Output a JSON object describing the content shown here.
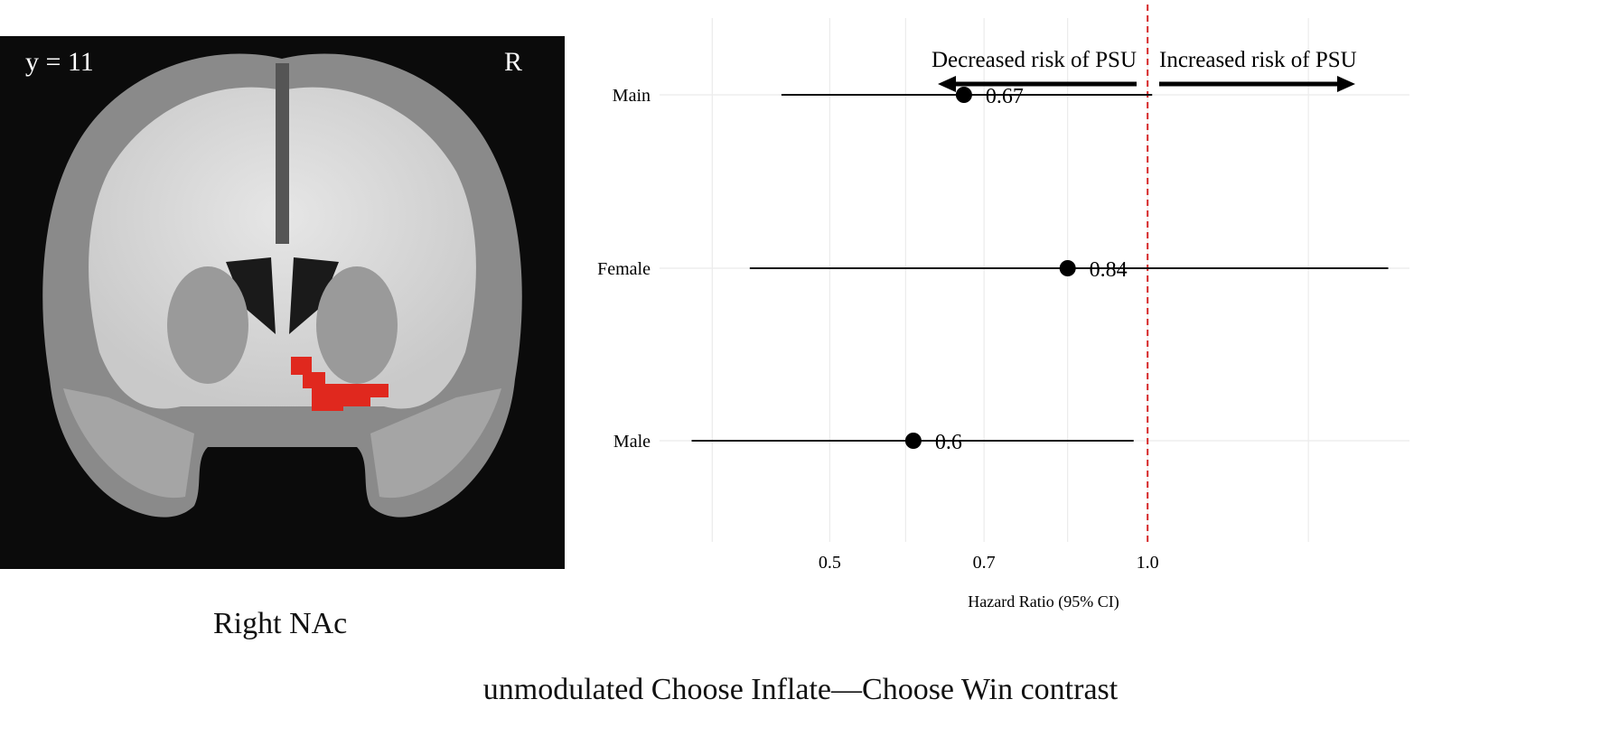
{
  "brain_panel": {
    "slice_label": "y = 11",
    "side_label": "R",
    "region_label": "Right NAc",
    "highlight_color": "#e0281e"
  },
  "caption": "unmodulated Choose Inflate—Choose Win contrast",
  "chart_data": {
    "type": "forest",
    "xlabel": "Hazard Ratio (95% CI)",
    "x_scale": "log",
    "xlim": [
      0.345,
      1.77
    ],
    "x_ticks": [
      0.5,
      0.7,
      1.0
    ],
    "x_tick_labels": [
      "0.5",
      "0.7",
      "1.0"
    ],
    "minor_gridlines": [
      0.387,
      0.59,
      0.84,
      1.42
    ],
    "grid": true,
    "reference_line": {
      "value": 1.0,
      "color": "#d62728",
      "style": "dashed"
    },
    "annotations": {
      "left": "Decreased risk of PSU",
      "right": "Increased risk of PSU"
    },
    "rows": [
      {
        "label": "Main",
        "estimate": 0.67,
        "estimate_label": "0.67",
        "lower": 0.45,
        "upper": 1.01
      },
      {
        "label": "Female",
        "estimate": 0.84,
        "estimate_label": "0.84",
        "lower": 0.42,
        "upper": 1.69
      },
      {
        "label": "Male",
        "estimate": 0.6,
        "estimate_label": "0.6",
        "lower": 0.37,
        "upper": 0.97
      }
    ]
  }
}
